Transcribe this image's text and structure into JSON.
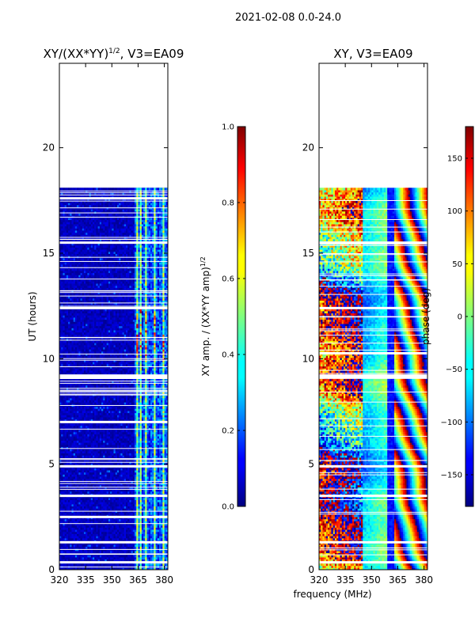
{
  "figure": {
    "suptitle": "2021-02-08 0.0-24.0",
    "shared_xlabel": "frequency (MHz)"
  },
  "chart_data": [
    {
      "type": "heatmap",
      "title_main": "XY/(XX*YY)",
      "title_exp": "1/2",
      "title_tail": ", V3=EA09",
      "ylabel": "UT (hours)",
      "xlabel": "",
      "xlim": [
        320,
        382
      ],
      "ylim": [
        0,
        24
      ],
      "xticks": [
        320,
        335,
        350,
        365,
        380
      ],
      "yticks": [
        0,
        5,
        10,
        15,
        20
      ],
      "data_ut_range": [
        0.0,
        18.1
      ],
      "gap_times_hours": [
        0.35,
        1.3,
        2.5,
        3.5,
        4.9,
        7.0,
        9.1,
        9.2,
        12.4,
        15.5,
        17.6
      ],
      "bright_channels_mhz": [
        364,
        366,
        369,
        374,
        379
      ],
      "colorbar": {
        "min": 0.0,
        "max": 1.0,
        "ticks": [
          0.0,
          0.2,
          0.4,
          0.6,
          0.8,
          1.0
        ],
        "label_main": "XY amp. / (XX*YY amp)",
        "label_exp": "1/2",
        "colormap": "jet"
      }
    },
    {
      "type": "heatmap",
      "title": "XY, V3=EA09",
      "ylabel": "",
      "xlabel": "frequency (MHz)",
      "xlim": [
        320,
        382
      ],
      "ylim": [
        0,
        24
      ],
      "xticks": [
        320,
        335,
        350,
        365,
        380
      ],
      "yticks": [
        0,
        5,
        10,
        15,
        20
      ],
      "data_ut_range": [
        0.0,
        18.1
      ],
      "gap_times_hours": [
        0.35,
        1.3,
        3.5,
        4.9,
        9.1,
        9.2,
        12.4,
        15.5
      ],
      "colorbar": {
        "min": -180,
        "max": 180,
        "ticks": [
          -150,
          -100,
          -50,
          0,
          50,
          100,
          150
        ],
        "label": "phase (deg)",
        "colormap": "jet"
      }
    }
  ],
  "colors": {
    "jet_dark_blue": "#00007f",
    "jet_blue": "#0000ff",
    "jet_cyan": "#00ffff",
    "jet_yellow": "#ffff00",
    "jet_red": "#ff0000",
    "jet_dark_red": "#7f0000"
  }
}
